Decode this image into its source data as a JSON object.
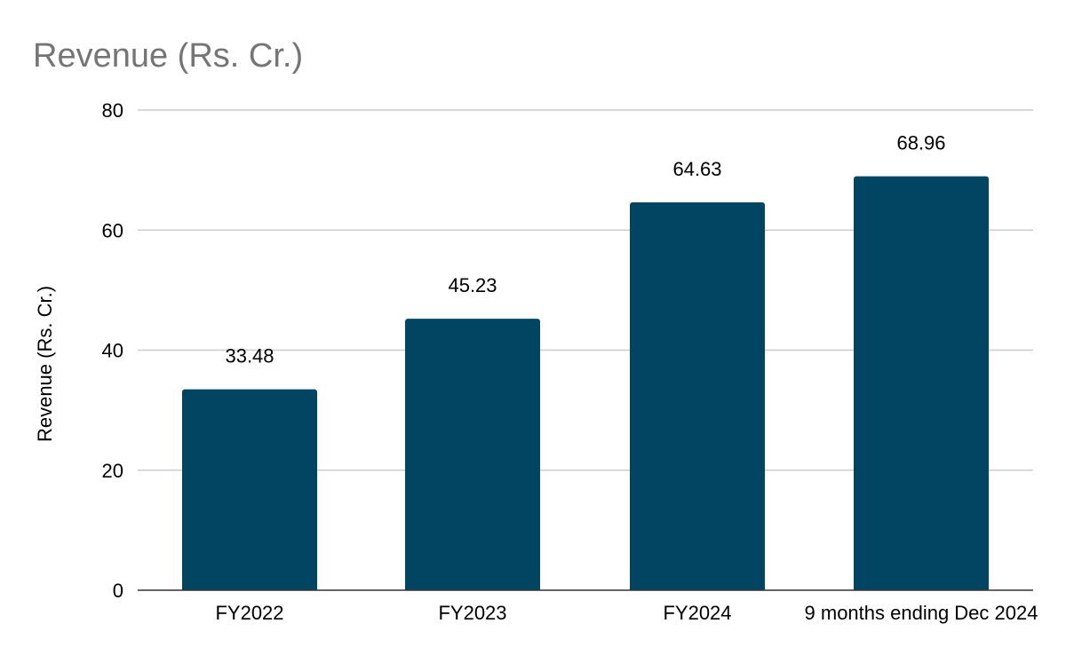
{
  "chart_data": {
    "type": "bar",
    "title": "Revenue (Rs. Cr.)",
    "xlabel": "",
    "ylabel": "Revenue (Rs. Cr.)",
    "categories": [
      "FY2022",
      "FY2023",
      "FY2024",
      "9 months ending Dec 2024"
    ],
    "values": [
      33.48,
      45.23,
      64.63,
      68.96
    ],
    "value_labels": [
      "33.48",
      "45.23",
      "64.63",
      "68.96"
    ],
    "ylim": [
      0,
      80
    ],
    "yticks": [
      0,
      20,
      40,
      60,
      80
    ],
    "grid": true,
    "legend": "none",
    "colors": {
      "bar": "#024562",
      "title": "#757575",
      "grid": "#cccccc",
      "baseline": "#333333"
    }
  }
}
